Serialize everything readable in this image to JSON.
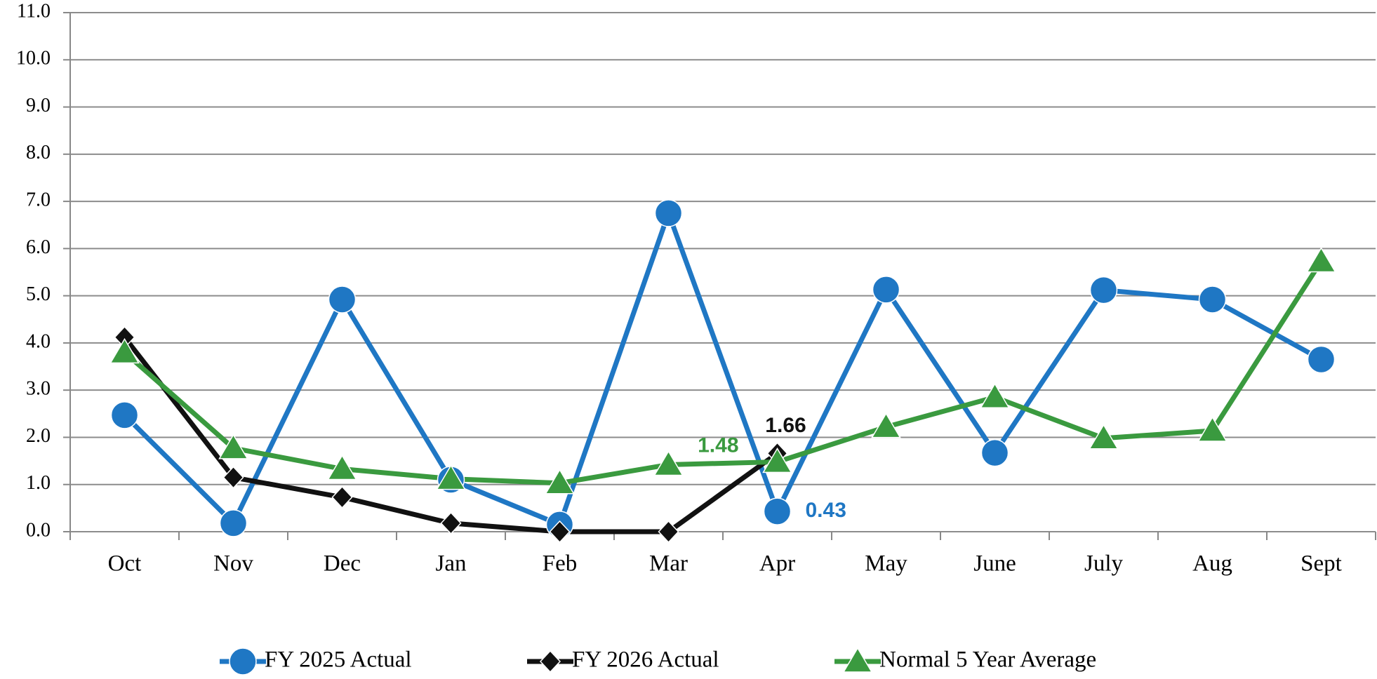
{
  "chart_data": {
    "type": "line",
    "categories": [
      "Oct",
      "Nov",
      "Dec",
      "Jan",
      "Feb",
      "Mar",
      "Apr",
      "May",
      "June",
      "July",
      "Aug",
      "Sept"
    ],
    "series": [
      {
        "name": "FY 2025 Actual",
        "color": "#1f77c4",
        "marker": "circle",
        "values": [
          2.47,
          0.18,
          4.92,
          1.1,
          0.15,
          6.75,
          0.43,
          5.13,
          1.67,
          5.12,
          4.92,
          3.65
        ],
        "value_labels": [
          null,
          null,
          null,
          null,
          null,
          null,
          "0.43",
          null,
          null,
          null,
          null,
          null
        ]
      },
      {
        "name": "FY 2026 Actual",
        "color": "#111111",
        "marker": "diamond",
        "values": [
          4.12,
          1.15,
          0.73,
          0.18,
          0.0,
          0.0,
          1.66,
          null,
          null,
          null,
          null,
          null
        ],
        "value_labels": [
          null,
          null,
          null,
          null,
          null,
          null,
          "1.66",
          null,
          null,
          null,
          null,
          null
        ]
      },
      {
        "name": "Normal 5 Year Average",
        "color": "#3a9a3f",
        "marker": "triangle",
        "values": [
          3.8,
          1.77,
          1.33,
          1.12,
          1.03,
          1.42,
          1.48,
          2.22,
          2.85,
          1.98,
          2.14,
          5.73
        ],
        "value_labels": [
          null,
          null,
          null,
          null,
          null,
          null,
          "1.48",
          null,
          null,
          null,
          null,
          null
        ]
      }
    ],
    "ylim": [
      0,
      11
    ],
    "yticks": [
      {
        "value": 0,
        "label": "0.0"
      },
      {
        "value": 1,
        "label": "1.0"
      },
      {
        "value": 2,
        "label": "2.0"
      },
      {
        "value": 3,
        "label": "3.0"
      },
      {
        "value": 4,
        "label": "4.0"
      },
      {
        "value": 5,
        "label": "5.0"
      },
      {
        "value": 6,
        "label": "6.0"
      },
      {
        "value": 7,
        "label": "7.0"
      },
      {
        "value": 8,
        "label": "8.0"
      },
      {
        "value": 9,
        "label": "9.0"
      },
      {
        "value": 10,
        "label": "10.0"
      },
      {
        "value": 11,
        "label": "11.0"
      }
    ],
    "grid": true,
    "legend": "bottom"
  }
}
